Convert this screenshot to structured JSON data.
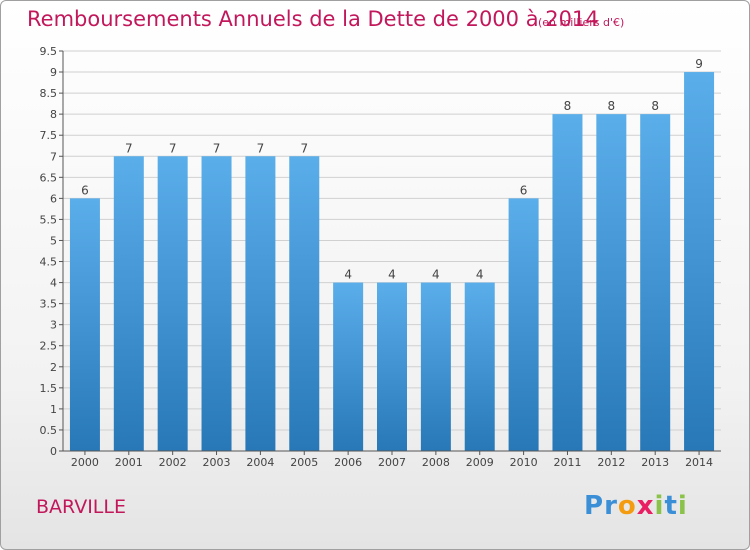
{
  "title": "Remboursements Annuels de la Dette de 2000 à 2014",
  "subtitle": "(en milliers d'€)",
  "footer_left": "BARVILLE",
  "logo": {
    "text": "Proxiti",
    "letters": [
      {
        "ch": "P",
        "color": "#3b8fd6"
      },
      {
        "ch": "r",
        "color": "#3b8fd6"
      },
      {
        "ch": "o",
        "color": "#f39c12"
      },
      {
        "ch": "x",
        "color": "#e91e63"
      },
      {
        "ch": "i",
        "color": "#8bc34a"
      },
      {
        "ch": "t",
        "color": "#3b8fd6"
      },
      {
        "ch": "i",
        "color": "#8bc34a"
      }
    ]
  },
  "colors": {
    "title": "#c2185b",
    "bar_top": "#5aaeea",
    "bar_bottom": "#2878b8",
    "grid": "#d0d0d0",
    "axis": "#555555"
  },
  "chart_data": {
    "type": "bar",
    "title": "Remboursements Annuels de la Dette de 2000 à 2014",
    "ylabel": "",
    "xlabel": "",
    "categories": [
      "2000",
      "2001",
      "2002",
      "2003",
      "2004",
      "2005",
      "2006",
      "2007",
      "2008",
      "2009",
      "2010",
      "2011",
      "2012",
      "2013",
      "2014"
    ],
    "values": [
      6,
      7,
      7,
      7,
      7,
      7,
      4,
      4,
      4,
      4,
      6,
      8,
      8,
      8,
      9
    ],
    "data_labels": [
      "6",
      "7",
      "7",
      "7",
      "7",
      "7",
      "4",
      "4",
      "4",
      "4",
      "6",
      "8",
      "8",
      "8",
      "9"
    ],
    "ylim": [
      0,
      9.5
    ],
    "yticks": [
      0,
      0.5,
      1,
      1.5,
      2,
      2.5,
      3,
      3.5,
      4,
      4.5,
      5,
      5.5,
      6,
      6.5,
      7,
      7.5,
      8,
      8.5,
      9,
      9.5
    ],
    "ytick_labels": [
      "0",
      "0.5",
      "1",
      "1.5",
      "2",
      "2.5",
      "3",
      "3.5",
      "4",
      "4.5",
      "5",
      "5.5",
      "6",
      "6.5",
      "7",
      "7.5",
      "8",
      "8.5",
      "9",
      "9.5"
    ],
    "grid": true
  }
}
